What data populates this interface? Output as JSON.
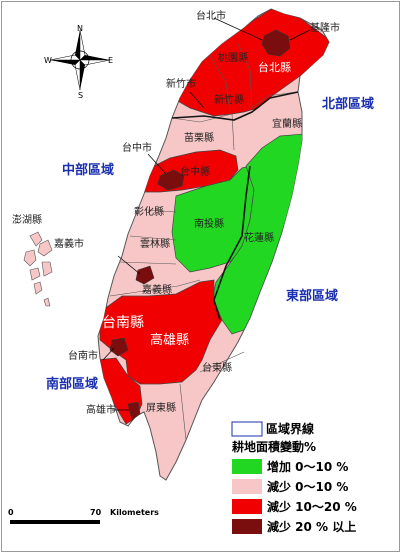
{
  "colors": {
    "increase": "#22d722",
    "decrease_low": "#f7c7c7",
    "decrease_mid": "#f00000",
    "decrease_high": "#7a0e0e",
    "region_label": "#1a2fb0"
  },
  "compass": {
    "n": "N",
    "e": "E",
    "s": "S",
    "w": "W"
  },
  "regions": {
    "north": "北部區域",
    "central": "中部區域",
    "east": "東部區域",
    "south": "南部區域"
  },
  "counties": {
    "taipei_city": "台北市",
    "keelung": "基隆市",
    "taipei_county": "台北縣",
    "taoyuan": "桃園縣",
    "hsinchu_city": "新竹市",
    "hsinchu_county": "新竹縣",
    "yilan": "宜蘭縣",
    "miaoli": "苗栗縣",
    "taichung_city": "台中市",
    "taichung_county": "台中縣",
    "changhua": "彰化縣",
    "nantou": "南投縣",
    "hualien": "花蓮縣",
    "yunlin": "雲林縣",
    "penghu": "澎湖縣",
    "chiayi_city": "嘉義市",
    "chiayi_county": "嘉義縣",
    "tainan_county": "台南縣",
    "tainan_city": "台南市",
    "kaohsiung_county": "高雄縣",
    "taitung": "台東縣",
    "kaohsiung_city": "高雄市",
    "pingtung": "屏東縣"
  },
  "legend": {
    "boundary": "區域界線",
    "title": "耕地面積變動%",
    "items": [
      {
        "label": "增加 0～10 %",
        "color": "#22d722"
      },
      {
        "label": "減少 0～10 %",
        "color": "#f7c7c7"
      },
      {
        "label": "減少 10～20 %",
        "color": "#f00000"
      },
      {
        "label": "減少 20 % 以上",
        "color": "#7a0e0e"
      }
    ]
  },
  "scale": {
    "zero": "0",
    "distance": "70",
    "unit": "Kilometers"
  }
}
